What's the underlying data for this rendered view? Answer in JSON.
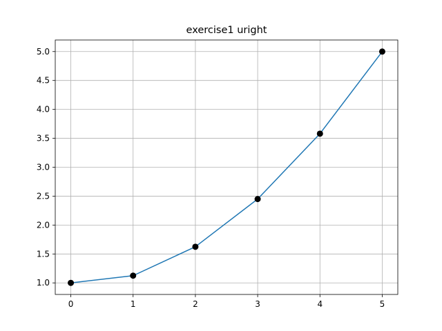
{
  "chart_data": {
    "type": "line",
    "title": "exercise1 uright",
    "xlabel": "",
    "ylabel": "",
    "x": [
      0,
      1,
      2,
      3,
      4,
      5
    ],
    "series": [
      {
        "values": [
          1.0,
          1.125,
          1.625,
          2.45,
          3.58,
          5.0
        ],
        "line_color": "#1f77b4",
        "marker_color": "#000000",
        "marker": "circle"
      }
    ],
    "xlim": [
      -0.25,
      5.25
    ],
    "ylim": [
      0.8,
      5.2
    ],
    "x_ticks": [
      0,
      1,
      2,
      3,
      4,
      5
    ],
    "y_ticks": [
      1.0,
      1.5,
      2.0,
      2.5,
      3.0,
      3.5,
      4.0,
      4.5,
      5.0
    ],
    "x_tick_labels": [
      "0",
      "1",
      "2",
      "3",
      "4",
      "5"
    ],
    "y_tick_labels": [
      "1.0",
      "1.5",
      "2.0",
      "2.5",
      "3.0",
      "3.5",
      "4.0",
      "4.5",
      "5.0"
    ],
    "grid": true,
    "legend": null
  }
}
